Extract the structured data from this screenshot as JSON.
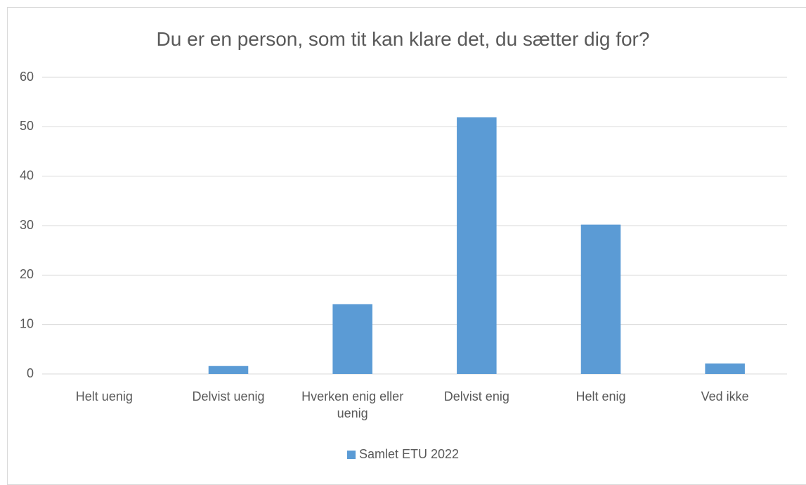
{
  "chart_data": {
    "type": "bar",
    "title": "Du er en person, som tit kan klare det, du sætter dig for?",
    "categories": [
      "Helt uenig",
      "Delvist uenig",
      "Hverken enig eller uenig",
      "Delvist enig",
      "Helt enig",
      "Ved ikke"
    ],
    "series": [
      {
        "name": "Samlet ETU 2022",
        "color": "#5b9bd5",
        "values": [
          0,
          1.6,
          14.1,
          51.9,
          30.2,
          2.1
        ]
      }
    ],
    "ylim": [
      0,
      60
    ],
    "yticks": [
      0,
      10,
      20,
      30,
      40,
      50,
      60
    ],
    "grid": true,
    "legend": "bottom"
  }
}
